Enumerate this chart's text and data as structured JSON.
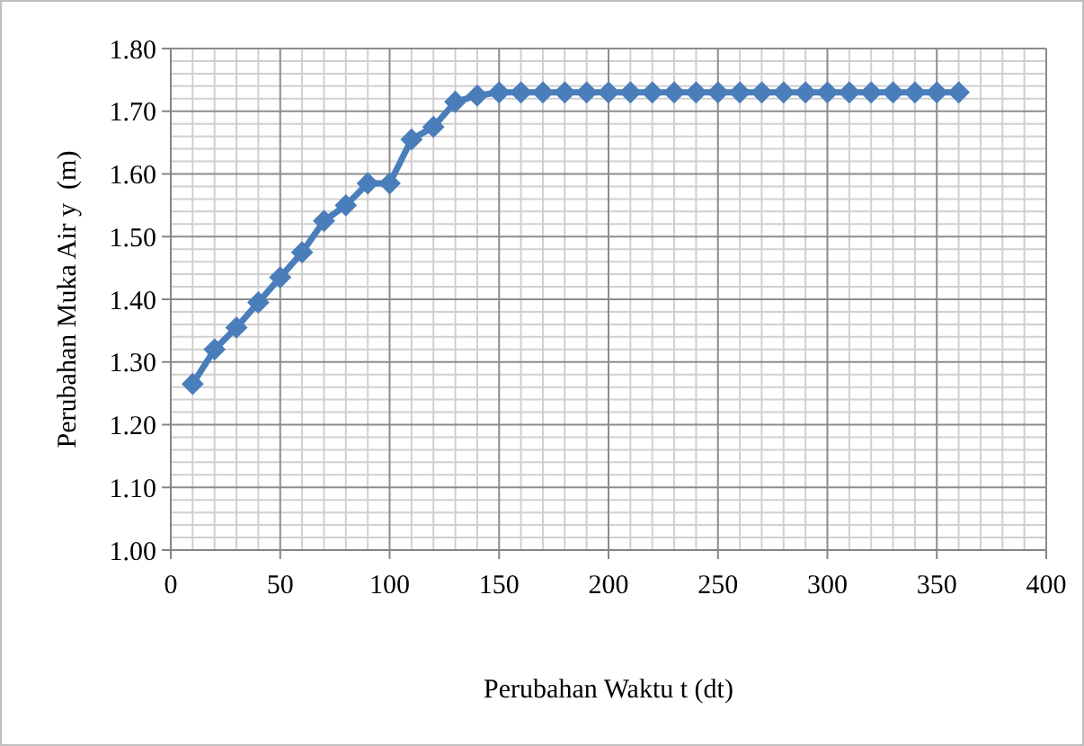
{
  "chart_data": {
    "type": "line",
    "xlabel": "Perubahan Waktu t (dt)",
    "ylabel": "Perubahan Muka Air y  (m)",
    "x": [
      10,
      20,
      30,
      40,
      50,
      60,
      70,
      80,
      90,
      100,
      110,
      120,
      130,
      140,
      150,
      160,
      170,
      180,
      190,
      200,
      210,
      220,
      230,
      240,
      250,
      260,
      270,
      280,
      290,
      300,
      310,
      320,
      330,
      340,
      350,
      360
    ],
    "series": [
      {
        "color": "#4a7ebb",
        "values": [
          1.265,
          1.32,
          1.355,
          1.395,
          1.435,
          1.475,
          1.525,
          1.55,
          1.585,
          1.585,
          1.655,
          1.675,
          1.715,
          1.725,
          1.73,
          1.73,
          1.73,
          1.73,
          1.73,
          1.73,
          1.73,
          1.73,
          1.73,
          1.73,
          1.73,
          1.73,
          1.73,
          1.73,
          1.73,
          1.73,
          1.73,
          1.73,
          1.73,
          1.73,
          1.73,
          1.73
        ]
      }
    ],
    "xlim": [
      0,
      400
    ],
    "xticks": [
      0,
      50,
      100,
      150,
      200,
      250,
      300,
      350,
      400
    ],
    "ylim": [
      1.0,
      1.8
    ],
    "yticks": [
      {
        "value": 1.0,
        "label": "1.00"
      },
      {
        "value": 1.1,
        "label": "1.10"
      },
      {
        "value": 1.2,
        "label": "1.20"
      },
      {
        "value": 1.3,
        "label": "1.30"
      },
      {
        "value": 1.4,
        "label": "1.40"
      },
      {
        "value": 1.5,
        "label": "1.50"
      },
      {
        "value": 1.6,
        "label": "1.60"
      },
      {
        "value": 1.7,
        "label": "1.70"
      },
      {
        "value": 1.8,
        "label": "1.80"
      }
    ],
    "grid": true,
    "marker": "diamond",
    "line_style": "solid"
  }
}
